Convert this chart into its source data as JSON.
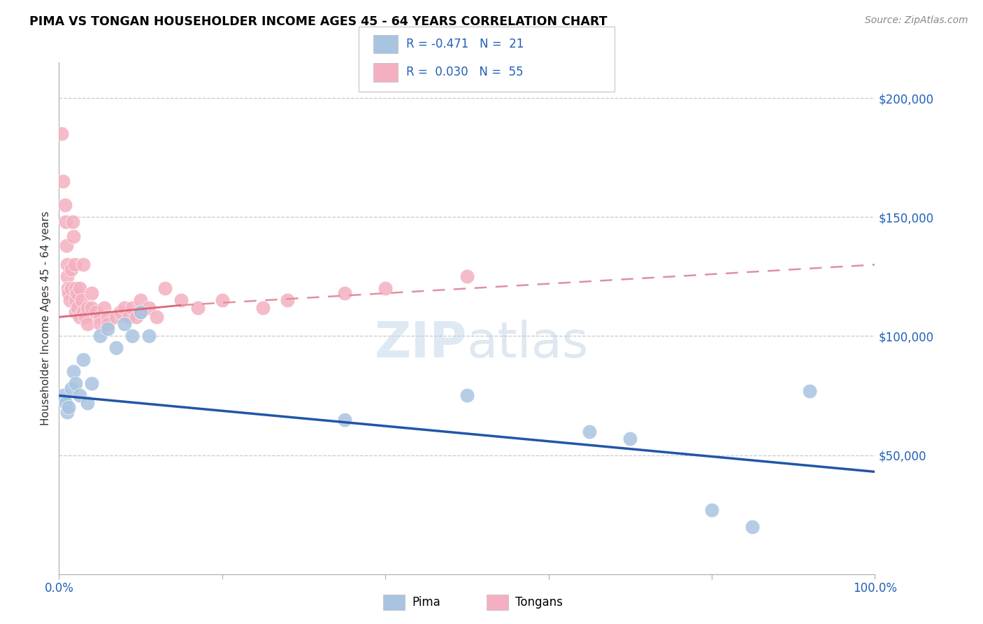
{
  "title": "PIMA VS TONGAN HOUSEHOLDER INCOME AGES 45 - 64 YEARS CORRELATION CHART",
  "source": "Source: ZipAtlas.com",
  "ylabel": "Householder Income Ages 45 - 64 years",
  "ytick_labels": [
    "$50,000",
    "$100,000",
    "$150,000",
    "$200,000"
  ],
  "ytick_values": [
    50000,
    100000,
    150000,
    200000
  ],
  "pima_label": "Pima",
  "tongan_label": "Tongans",
  "blue_color": "#a8c4e0",
  "pink_color": "#f4b0c0",
  "blue_line_color": "#2255a8",
  "pink_line_solid_color": "#d86878",
  "pink_line_dash_color": "#e090a0",
  "background_color": "#ffffff",
  "grid_color": "#c8c8c8",
  "pima_x": [
    0.5,
    0.8,
    1.0,
    1.2,
    1.5,
    1.8,
    2.0,
    2.5,
    3.0,
    3.5,
    4.0,
    5.0,
    6.0,
    7.0,
    8.0,
    9.0,
    10.0,
    11.0,
    35.0,
    50.0,
    65.0,
    70.0,
    80.0,
    85.0,
    92.0
  ],
  "pima_y": [
    75000,
    72000,
    68000,
    70000,
    78000,
    85000,
    80000,
    75000,
    90000,
    72000,
    80000,
    100000,
    103000,
    95000,
    105000,
    100000,
    110000,
    100000,
    65000,
    75000,
    60000,
    57000,
    27000,
    20000,
    77000
  ],
  "tongan_x": [
    0.3,
    0.5,
    0.7,
    0.8,
    0.9,
    1.0,
    1.0,
    1.1,
    1.2,
    1.3,
    1.5,
    1.5,
    1.7,
    1.8,
    1.9,
    2.0,
    2.0,
    2.0,
    2.2,
    2.3,
    2.5,
    2.5,
    2.8,
    3.0,
    3.0,
    3.2,
    3.5,
    3.5,
    4.0,
    4.0,
    4.5,
    5.0,
    5.0,
    5.5,
    6.0,
    6.0,
    7.0,
    7.5,
    8.0,
    8.5,
    9.0,
    9.5,
    10.0,
    10.0,
    11.0,
    12.0,
    13.0,
    15.0,
    17.0,
    20.0,
    25.0,
    28.0,
    35.0,
    40.0,
    50.0
  ],
  "tongan_y": [
    185000,
    165000,
    155000,
    148000,
    138000,
    130000,
    125000,
    120000,
    118000,
    115000,
    128000,
    120000,
    148000,
    142000,
    130000,
    120000,
    115000,
    110000,
    118000,
    112000,
    120000,
    108000,
    115000,
    130000,
    110000,
    108000,
    112000,
    105000,
    118000,
    112000,
    110000,
    108000,
    105000,
    112000,
    108000,
    105000,
    108000,
    110000,
    112000,
    108000,
    112000,
    108000,
    115000,
    110000,
    112000,
    108000,
    120000,
    115000,
    112000,
    115000,
    112000,
    115000,
    118000,
    120000,
    125000
  ],
  "xlim": [
    0,
    100
  ],
  "ylim": [
    0,
    215000
  ],
  "pima_line_x0": 0,
  "pima_line_y0": 75000,
  "pima_line_x1": 100,
  "pima_line_y1": 43000,
  "tongan_line_solid_x0": 0,
  "tongan_line_solid_y0": 108000,
  "tongan_line_solid_x1": 15,
  "tongan_line_solid_y1": 113000,
  "tongan_line_dash_x0": 15,
  "tongan_line_dash_y0": 113000,
  "tongan_line_dash_x1": 100,
  "tongan_line_dash_y1": 130000
}
